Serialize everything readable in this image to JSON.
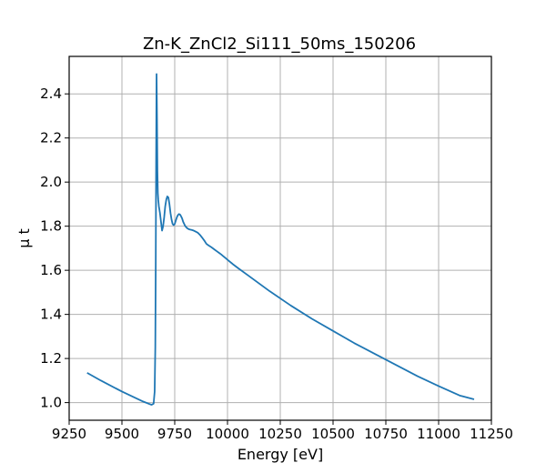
{
  "chart_data": {
    "type": "line",
    "title": "Zn-K_ZnCl2_Si111_50ms_150206",
    "xlabel": "Energy [eV]",
    "ylabel": "μ t",
    "xlim": [
      9250,
      11250
    ],
    "ylim": [
      0.92,
      2.57
    ],
    "xticks": [
      9250,
      9500,
      9750,
      10000,
      10250,
      10500,
      10750,
      11000,
      11250
    ],
    "yticks": [
      1.0,
      1.2,
      1.4,
      1.6,
      1.8,
      2.0,
      2.2,
      2.4
    ],
    "grid": true,
    "colors": {
      "series": "#1f77b4",
      "grid": "#b0b0b0"
    },
    "series": [
      {
        "x": [
          9335,
          9400,
          9500,
          9600,
          9640,
          9650,
          9655,
          9658,
          9660,
          9662,
          9664,
          9666,
          9668,
          9670,
          9672,
          9675,
          9680,
          9685,
          9690,
          9695,
          9700,
          9705,
          9710,
          9715,
          9720,
          9725,
          9730,
          9735,
          9740,
          9745,
          9750,
          9755,
          9760,
          9765,
          9770,
          9775,
          9780,
          9785,
          9790,
          9795,
          9800,
          9810,
          9820,
          9830,
          9840,
          9850,
          9860,
          9870,
          9880,
          9890,
          9900,
          9910,
          9920,
          9930,
          9940,
          9950,
          9960,
          9970,
          9980,
          9990,
          10000,
          10025,
          10050,
          10100,
          10200,
          10300,
          10400,
          10500,
          10600,
          10700,
          10800,
          10900,
          11000,
          11100,
          11168
        ],
        "y": [
          1.135,
          1.1,
          1.05,
          1.005,
          0.99,
          0.995,
          1.05,
          1.25,
          1.6,
          2.1,
          2.49,
          2.3,
          2.05,
          1.95,
          1.92,
          1.89,
          1.86,
          1.82,
          1.78,
          1.8,
          1.84,
          1.89,
          1.92,
          1.935,
          1.93,
          1.9,
          1.86,
          1.83,
          1.81,
          1.805,
          1.81,
          1.825,
          1.84,
          1.85,
          1.855,
          1.853,
          1.845,
          1.835,
          1.82,
          1.81,
          1.8,
          1.79,
          1.785,
          1.783,
          1.78,
          1.775,
          1.77,
          1.76,
          1.748,
          1.735,
          1.72,
          1.713,
          1.707,
          1.7,
          1.693,
          1.686,
          1.679,
          1.672,
          1.664,
          1.656,
          1.648,
          1.628,
          1.61,
          1.575,
          1.505,
          1.44,
          1.38,
          1.325,
          1.27,
          1.22,
          1.17,
          1.12,
          1.075,
          1.032,
          1.015
        ]
      }
    ]
  }
}
